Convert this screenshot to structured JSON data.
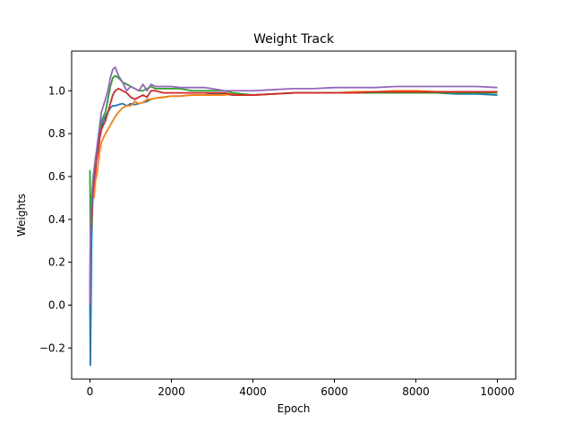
{
  "chart_data": {
    "type": "line",
    "title": "Weight Track",
    "xlabel": "Epoch",
    "ylabel": "Weights",
    "xlim": [
      -450,
      10450
    ],
    "ylim": [
      -0.345,
      1.185
    ],
    "xticks": [
      0,
      2000,
      4000,
      6000,
      8000,
      10000
    ],
    "yticks": [
      -0.2,
      0.0,
      0.2,
      0.4,
      0.6,
      0.8,
      1.0
    ],
    "xtick_labels": [
      "0",
      "2000",
      "4000",
      "6000",
      "8000",
      "10000"
    ],
    "ytick_labels": [
      "−0.2",
      "0.0",
      "0.2",
      "0.4",
      "0.6",
      "0.8",
      "1.0"
    ],
    "grid": false,
    "legend": false,
    "series": [
      {
        "color": "#1f77b4",
        "x": [
          0,
          10,
          20,
          40,
          60,
          80,
          100,
          130,
          160,
          200,
          240,
          280,
          330,
          380,
          440,
          500,
          560,
          620,
          700,
          800,
          900,
          1000,
          1100,
          1200,
          1300,
          1400,
          1500,
          1600,
          1800,
          2000,
          2200,
          2500,
          2800,
          3000,
          3300,
          3500,
          4000,
          4500,
          5000,
          5500,
          6000,
          6500,
          7000,
          7500,
          8000,
          8500,
          9000,
          9500,
          10000
        ],
        "y": [
          0.01,
          -0.28,
          -0.08,
          0.3,
          0.45,
          0.55,
          0.6,
          0.62,
          0.7,
          0.74,
          0.8,
          0.83,
          0.86,
          0.88,
          0.9,
          0.92,
          0.93,
          0.93,
          0.935,
          0.94,
          0.93,
          0.94,
          0.935,
          0.94,
          0.945,
          0.95,
          0.96,
          0.965,
          0.97,
          0.975,
          0.975,
          0.98,
          0.98,
          0.985,
          0.985,
          0.98,
          0.98,
          0.985,
          0.99,
          0.99,
          0.99,
          0.99,
          0.99,
          0.99,
          0.99,
          0.99,
          0.985,
          0.985,
          0.98
        ]
      },
      {
        "color": "#ff7f0e",
        "x": [
          0,
          10,
          20,
          40,
          60,
          80,
          100,
          130,
          160,
          200,
          240,
          280,
          330,
          380,
          440,
          500,
          560,
          620,
          700,
          800,
          900,
          1000,
          1100,
          1200,
          1300,
          1400,
          1500,
          1600,
          1800,
          2000,
          2200,
          2500,
          2800,
          3000,
          3300,
          3500,
          4000,
          4500,
          5000,
          5500,
          6000,
          6500,
          7000,
          7500,
          8000,
          8500,
          9000,
          9500,
          10000
        ],
        "y": [
          0.0,
          0.28,
          0.4,
          0.48,
          0.5,
          0.52,
          0.5,
          0.58,
          0.6,
          0.66,
          0.72,
          0.76,
          0.78,
          0.8,
          0.82,
          0.84,
          0.86,
          0.88,
          0.9,
          0.92,
          0.93,
          0.93,
          0.95,
          0.94,
          0.945,
          0.96,
          0.96,
          0.965,
          0.97,
          0.975,
          0.975,
          0.98,
          0.98,
          0.98,
          0.98,
          0.985,
          0.98,
          0.985,
          0.99,
          0.99,
          0.99,
          0.995,
          0.995,
          1.0,
          1.0,
          0.995,
          0.995,
          0.995,
          0.99
        ]
      },
      {
        "color": "#2ca02c",
        "x": [
          0,
          10,
          20,
          40,
          60,
          80,
          100,
          130,
          160,
          200,
          240,
          280,
          330,
          380,
          440,
          500,
          560,
          620,
          700,
          800,
          900,
          1000,
          1100,
          1200,
          1300,
          1400,
          1500,
          1600,
          1800,
          2000,
          2200,
          2500,
          2800,
          3000,
          3300,
          3500,
          4000,
          4500,
          5000,
          5500,
          6000,
          6500,
          7000,
          7500,
          8000,
          8500,
          9000,
          9500,
          10000
        ],
        "y": [
          0.63,
          0.32,
          0.36,
          0.4,
          0.55,
          0.6,
          0.63,
          0.66,
          0.7,
          0.74,
          0.8,
          0.86,
          0.88,
          0.9,
          0.96,
          1.02,
          1.06,
          1.07,
          1.06,
          1.04,
          1.03,
          1.02,
          1.01,
          1.0,
          1.0,
          1.01,
          1.02,
          1.01,
          1.01,
          1.01,
          1.01,
          1.0,
          1.0,
          1.0,
          1.0,
          0.99,
          0.98,
          0.985,
          0.99,
          0.99,
          0.99,
          0.99,
          0.99,
          0.99,
          0.99,
          0.99,
          0.99,
          0.99,
          0.99
        ]
      },
      {
        "color": "#d62728",
        "x": [
          0,
          10,
          20,
          40,
          60,
          80,
          100,
          130,
          160,
          200,
          240,
          280,
          330,
          380,
          440,
          500,
          560,
          620,
          700,
          800,
          900,
          1000,
          1100,
          1200,
          1300,
          1400,
          1500,
          1600,
          1800,
          2000,
          2200,
          2500,
          2800,
          3000,
          3300,
          3500,
          4000,
          4500,
          5000,
          5500,
          6000,
          6500,
          7000,
          7500,
          8000,
          8500,
          9000,
          9500,
          10000
        ],
        "y": [
          0.01,
          0.32,
          0.38,
          0.45,
          0.5,
          0.55,
          0.58,
          0.62,
          0.68,
          0.72,
          0.78,
          0.82,
          0.84,
          0.86,
          0.9,
          0.94,
          0.98,
          1.0,
          1.01,
          1.0,
          0.99,
          0.97,
          0.96,
          0.97,
          0.98,
          0.97,
          1.0,
          1.0,
          0.99,
          0.99,
          0.99,
          0.99,
          0.99,
          0.99,
          0.99,
          0.98,
          0.98,
          0.985,
          0.99,
          0.99,
          0.99,
          0.99,
          0.995,
          0.995,
          0.995,
          0.995,
          0.995,
          0.995,
          0.995
        ]
      },
      {
        "color": "#9467bd",
        "x": [
          0,
          10,
          20,
          40,
          60,
          80,
          100,
          130,
          160,
          200,
          240,
          280,
          330,
          380,
          440,
          500,
          560,
          620,
          700,
          800,
          900,
          1000,
          1100,
          1200,
          1300,
          1400,
          1500,
          1600,
          1800,
          2000,
          2200,
          2500,
          2800,
          3000,
          3300,
          3500,
          4000,
          4500,
          5000,
          5500,
          6000,
          6500,
          7000,
          7500,
          8000,
          8500,
          9000,
          9500,
          10000
        ],
        "y": [
          0.0,
          0.35,
          0.42,
          0.5,
          0.55,
          0.6,
          0.63,
          0.68,
          0.72,
          0.78,
          0.84,
          0.9,
          0.93,
          0.96,
          1.0,
          1.06,
          1.1,
          1.11,
          1.07,
          1.04,
          1.0,
          1.02,
          1.01,
          1.0,
          1.03,
          1.0,
          1.03,
          1.02,
          1.02,
          1.02,
          1.015,
          1.015,
          1.015,
          1.01,
          1.0,
          1.0,
          1.0,
          1.005,
          1.01,
          1.01,
          1.015,
          1.015,
          1.015,
          1.02,
          1.02,
          1.02,
          1.02,
          1.02,
          1.015
        ]
      }
    ]
  }
}
